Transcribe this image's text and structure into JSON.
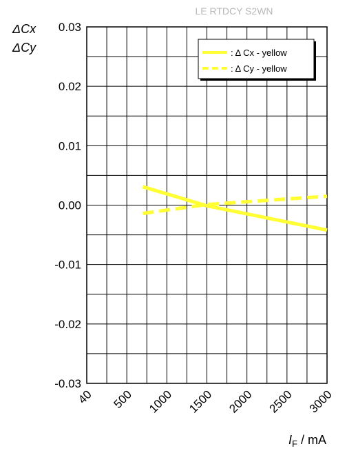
{
  "chart_data": {
    "type": "line",
    "title": "LE RTDCY S2WN",
    "ylabel_lines": [
      "ΔCx",
      "ΔCy"
    ],
    "xlabel": {
      "symbol": "I",
      "subscript": "F",
      "unit": " / mA"
    },
    "x_tick_labels": [
      "40",
      "500",
      "1000",
      "1500",
      "2000",
      "2500",
      "3000"
    ],
    "x_tick_values": [
      40,
      500,
      1000,
      1500,
      2000,
      2500,
      3000
    ],
    "y_tick_labels": [
      "0.03",
      "0.02",
      "0.01",
      "0.00",
      "-0.01",
      "-0.02",
      "-0.03"
    ],
    "y_tick_values": [
      0.03,
      0.02,
      0.01,
      0.0,
      -0.01,
      -0.02,
      -0.03
    ],
    "ylim": [
      -0.03,
      0.03
    ],
    "grid": true,
    "legend_position": "top-right",
    "series": [
      {
        "name": ": Δ Cx - yellow",
        "style": "solid",
        "color": "#ffff33",
        "x": [
          700,
          1500,
          3000
        ],
        "y": [
          0.0031,
          -0.0001,
          -0.0042
        ]
      },
      {
        "name": ": Δ Cy - yellow",
        "style": "dashed",
        "color": "#ffff33",
        "x": [
          700,
          1500,
          3000
        ],
        "y": [
          -0.0014,
          0.0001,
          0.0015
        ]
      }
    ]
  }
}
